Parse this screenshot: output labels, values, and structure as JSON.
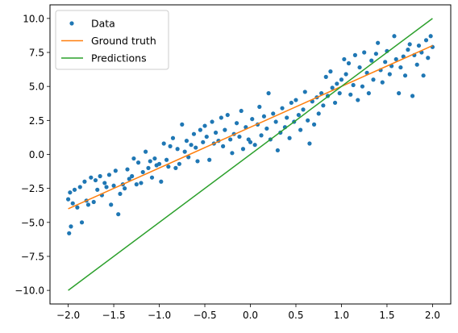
{
  "chart_data": {
    "type": "scatter",
    "title": "",
    "xlabel": "",
    "ylabel": "",
    "xlim": [
      -2.2,
      2.2
    ],
    "ylim": [
      -11.0,
      11.0
    ],
    "xticks": [
      -2.0,
      -1.5,
      -1.0,
      -0.5,
      0.0,
      0.5,
      1.0,
      1.5,
      2.0
    ],
    "yticks": [
      -10.0,
      -7.5,
      -5.0,
      -2.5,
      0.0,
      2.5,
      5.0,
      7.5,
      10.0
    ],
    "xtick_labels": [
      "−2.0",
      "−1.5",
      "−1.0",
      "−0.5",
      "0.0",
      "0.5",
      "1.0",
      "1.5",
      "2.0"
    ],
    "ytick_labels": [
      "−10.0",
      "−7.5",
      "−5.0",
      "−2.5",
      "0.0",
      "2.5",
      "5.0",
      "7.5",
      "10.0"
    ],
    "grid": false,
    "legend_position": "top-left",
    "series": [
      {
        "name": "Data",
        "kind": "points",
        "color": "#1f77b4",
        "x": [
          -2.0,
          -1.99,
          -1.98,
          -1.97,
          -1.95,
          -1.93,
          -1.9,
          -1.87,
          -1.85,
          -1.82,
          -1.8,
          -1.78,
          -1.75,
          -1.72,
          -1.7,
          -1.68,
          -1.65,
          -1.63,
          -1.6,
          -1.58,
          -1.55,
          -1.53,
          -1.5,
          -1.48,
          -1.45,
          -1.43,
          -1.4,
          -1.38,
          -1.35,
          -1.33,
          -1.3,
          -1.28,
          -1.25,
          -1.23,
          -1.2,
          -1.18,
          -1.15,
          -1.12,
          -1.1,
          -1.08,
          -1.05,
          -1.03,
          -1.0,
          -0.98,
          -0.95,
          -0.92,
          -0.9,
          -0.88,
          -0.85,
          -0.82,
          -0.8,
          -0.78,
          -0.75,
          -0.72,
          -0.7,
          -0.68,
          -0.65,
          -0.62,
          -0.6,
          -0.58,
          -0.55,
          -0.52,
          -0.5,
          -0.48,
          -0.45,
          -0.42,
          -0.4,
          -0.38,
          -0.35,
          -0.32,
          -0.3,
          -0.28,
          -0.25,
          -0.22,
          -0.2,
          -0.18,
          -0.15,
          -0.12,
          -0.1,
          -0.08,
          -0.05,
          -0.02,
          0.0,
          0.02,
          0.05,
          0.08,
          0.1,
          0.12,
          0.15,
          0.18,
          0.2,
          0.22,
          0.25,
          0.28,
          0.3,
          0.33,
          0.35,
          0.38,
          0.4,
          0.43,
          0.45,
          0.48,
          0.5,
          0.53,
          0.55,
          0.58,
          0.6,
          0.63,
          0.65,
          0.68,
          0.7,
          0.73,
          0.75,
          0.78,
          0.8,
          0.83,
          0.85,
          0.88,
          0.9,
          0.93,
          0.95,
          0.98,
          1.0,
          1.03,
          1.05,
          1.08,
          1.1,
          1.13,
          1.15,
          1.18,
          1.2,
          1.23,
          1.25,
          1.28,
          1.3,
          1.33,
          1.35,
          1.38,
          1.4,
          1.43,
          1.45,
          1.48,
          1.5,
          1.53,
          1.55,
          1.58,
          1.6,
          1.63,
          1.65,
          1.68,
          1.7,
          1.73,
          1.75,
          1.78,
          1.8,
          1.83,
          1.85,
          1.88,
          1.9,
          1.93,
          1.95,
          1.98,
          2.0
        ],
        "y": [
          -3.3,
          -5.8,
          -2.8,
          -5.3,
          -3.6,
          -2.6,
          -3.9,
          -2.4,
          -5.0,
          -2.0,
          -3.4,
          -3.7,
          -1.7,
          -3.5,
          -1.9,
          -2.6,
          -1.6,
          -3.0,
          -2.1,
          -2.4,
          -1.5,
          -3.7,
          -2.3,
          -1.2,
          -4.4,
          -2.9,
          -2.2,
          -2.5,
          -1.1,
          -1.8,
          -1.6,
          -0.3,
          -2.2,
          -0.6,
          -2.1,
          -1.3,
          0.2,
          -1.0,
          -0.5,
          -1.7,
          -0.3,
          -0.8,
          -0.7,
          -2.0,
          0.8,
          -0.4,
          -0.9,
          0.6,
          1.2,
          -1.0,
          0.4,
          -0.7,
          2.2,
          0.2,
          1.0,
          -0.2,
          0.7,
          1.5,
          0.5,
          -0.5,
          1.8,
          0.9,
          2.1,
          1.3,
          -0.4,
          2.4,
          0.8,
          1.6,
          1.0,
          2.7,
          0.6,
          1.8,
          2.9,
          1.1,
          0.1,
          1.5,
          2.3,
          1.3,
          3.2,
          0.4,
          2.0,
          1.1,
          0.9,
          2.6,
          0.7,
          2.2,
          3.5,
          1.4,
          2.8,
          1.9,
          4.5,
          1.1,
          3.0,
          2.4,
          0.3,
          1.6,
          3.4,
          2.0,
          2.7,
          1.2,
          3.8,
          2.4,
          4.0,
          2.9,
          1.8,
          3.3,
          4.6,
          2.5,
          0.8,
          3.9,
          2.2,
          4.2,
          3.0,
          4.5,
          3.6,
          5.7,
          4.3,
          6.1,
          4.9,
          3.8,
          5.2,
          4.5,
          5.5,
          7.0,
          5.9,
          6.7,
          4.4,
          5.1,
          7.3,
          4.0,
          6.4,
          5.0,
          7.5,
          6.0,
          4.5,
          6.9,
          5.5,
          7.4,
          8.2,
          6.2,
          5.3,
          6.8,
          7.6,
          5.9,
          6.5,
          8.7,
          7.0,
          4.5,
          6.4,
          7.2,
          5.8,
          7.7,
          8.1,
          4.3,
          7.3,
          6.6,
          8.0,
          7.5,
          5.8,
          8.4,
          7.1,
          8.7,
          7.9
        ]
      },
      {
        "name": "Ground truth",
        "kind": "line",
        "color": "#ff7f0e",
        "x": [
          -2.0,
          2.0
        ],
        "y": [
          -4.0,
          8.0
        ]
      },
      {
        "name": "Predictions",
        "kind": "line",
        "color": "#2ca02c",
        "x": [
          -2.0,
          2.0
        ],
        "y": [
          -10.0,
          10.0
        ]
      }
    ]
  }
}
